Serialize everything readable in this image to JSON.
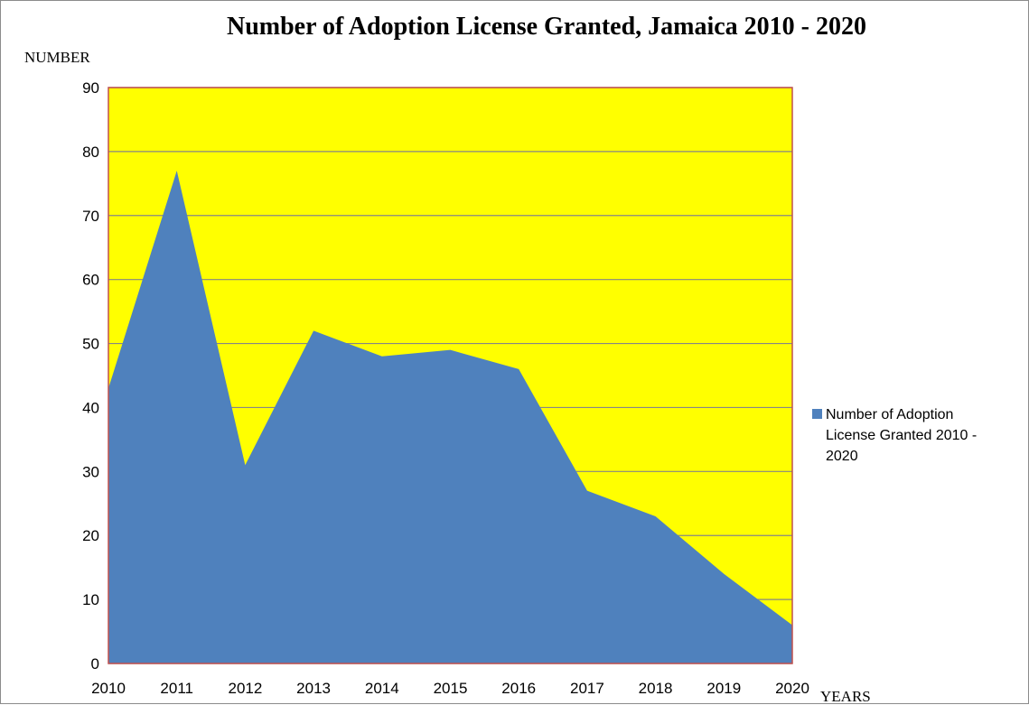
{
  "chart_data": {
    "type": "area",
    "title": "Number of Adoption License Granted, Jamaica 2010 - 2020",
    "ylabel": "NUMBER",
    "xlabel": "YEARS",
    "categories": [
      "2010",
      "2011",
      "2012",
      "2013",
      "2014",
      "2015",
      "2016",
      "2017",
      "2018",
      "2019",
      "2020"
    ],
    "series": [
      {
        "name": "Number of Adoption License Granted 2010 - 2020",
        "values": [
          43,
          77,
          31,
          52,
          48,
          49,
          46,
          27,
          23,
          14,
          6
        ],
        "color": "#4f81bd"
      }
    ],
    "ylim": [
      0,
      90
    ],
    "y_ticks": [
      "0",
      "10",
      "20",
      "30",
      "40",
      "50",
      "60",
      "70",
      "80",
      "90"
    ],
    "grid": true,
    "plot_background": "#ffff00",
    "plot_border_color": "#c0504d",
    "legend_position": "right",
    "legend_lines": [
      "Number of Adoption",
      "License Granted 2010 -",
      "2020"
    ]
  }
}
